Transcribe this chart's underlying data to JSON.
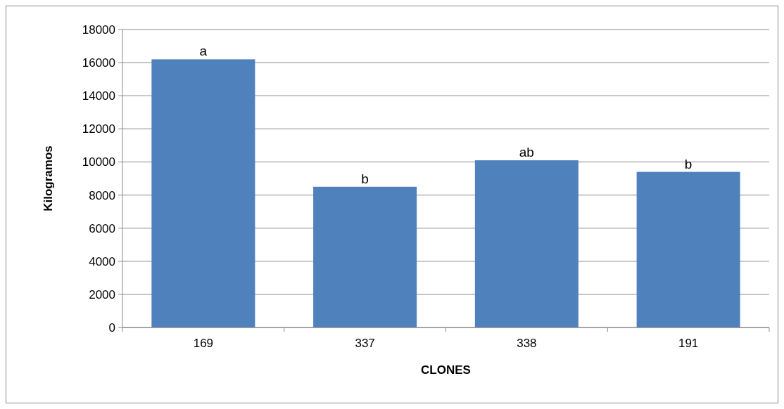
{
  "chart_data": {
    "type": "bar",
    "xlabel": "CLONES",
    "ylabel": "Kilogramos",
    "categories": [
      "169",
      "337",
      "338",
      "191"
    ],
    "values": [
      16200,
      8500,
      10100,
      9400
    ],
    "color": "#4f81bd",
    "ylim": [
      0,
      18000
    ],
    "yticks": [
      0,
      2000,
      4000,
      6000,
      8000,
      10000,
      12000,
      14000,
      16000,
      18000
    ],
    "grid": "y",
    "annotations": [
      {
        "text": "a",
        "x": "169",
        "y": 16200
      },
      {
        "text": "b",
        "x": "337",
        "y": 8500
      },
      {
        "text": "ab",
        "x": "338",
        "y": 10100
      },
      {
        "text": "b",
        "x": "191",
        "y": 9400
      }
    ]
  }
}
